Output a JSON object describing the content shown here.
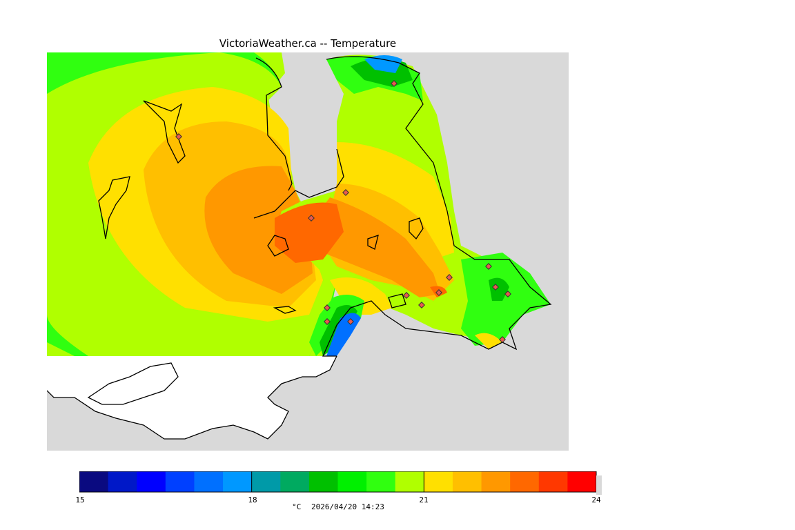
{
  "title": "VictoriaWeather.ca -- Temperature",
  "legend": {
    "min": 15,
    "max": 24,
    "ticks": [
      "15",
      "18",
      "21",
      "24"
    ],
    "colors": [
      "#0a0a80",
      "#0018c8",
      "#0000ff",
      "#0040ff",
      "#0070ff",
      "#0098ff",
      "#009aa8",
      "#00aa60",
      "#00c000",
      "#00f000",
      "#30ff10",
      "#b0ff00",
      "#ffe000",
      "#ffbf00",
      "#ff9800",
      "#ff6800",
      "#ff3800",
      "#ff0000"
    ],
    "units": "°C",
    "timestamp": "2026/04/20 14:23"
  },
  "colors": {
    "land": "#d9d9d9",
    "water": "#ffffff",
    "coast": "#000000",
    "station": "#e85a50"
  }
}
